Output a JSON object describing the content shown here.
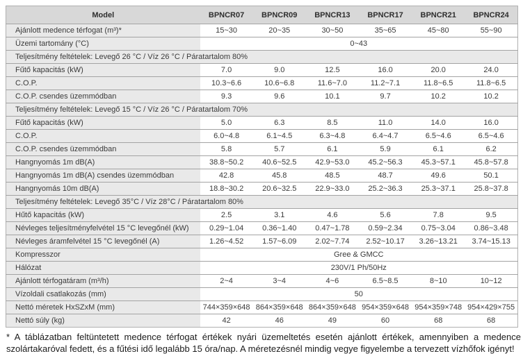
{
  "colors": {
    "header_bg": "#d8d8d8",
    "label_bg": "#e9e9e9",
    "row_border": "#a3a3a3",
    "outer_border": "#b0b0b0",
    "text": "#3a3a3a",
    "header_text": "#2e2e2e",
    "footnote_text": "#1b1b1b"
  },
  "table": {
    "header": {
      "label": "Model",
      "models": [
        "BPNCR07",
        "BPNCR09",
        "BPNCR13",
        "BPNCR17",
        "BPNCR21",
        "BPNCR24"
      ]
    },
    "rows": [
      {
        "type": "data",
        "label": "Ajánlott medence térfogat (m³)*",
        "values": [
          "15~30",
          "20~35",
          "30~50",
          "35~65",
          "45~80",
          "55~90"
        ]
      },
      {
        "type": "span",
        "label": "Üzemi tartomány (°C)",
        "value": "0~43"
      },
      {
        "type": "section",
        "label": "Teljesítmény feltételek: Levegő 26 °C / Víz 26 °C / Páratartalom 80%"
      },
      {
        "type": "data",
        "label": "Fűtő kapacitás (kW)",
        "values": [
          "7.0",
          "9.0",
          "12.5",
          "16.0",
          "20.0",
          "24.0"
        ]
      },
      {
        "type": "data",
        "label": "C.O.P.",
        "values": [
          "10.3~6.6",
          "10.6~6.8",
          "11.6~7.0",
          "11.2~7.1",
          "11.8~6.5",
          "11.8~6.5"
        ]
      },
      {
        "type": "data",
        "label": "C.O.P. csendes üzemmódban",
        "values": [
          "9.3",
          "9.6",
          "10.1",
          "9.7",
          "10.2",
          "10.2"
        ]
      },
      {
        "type": "section",
        "label": "Teljesítmény feltételek: Levegő 15 °C / Víz 26 °C / Páratartalom 70%"
      },
      {
        "type": "data",
        "label": "Fűtő kapacitás (kW)",
        "values": [
          "5.0",
          "6.3",
          "8.5",
          "11.0",
          "14.0",
          "16.0"
        ]
      },
      {
        "type": "data",
        "label": "C.O.P.",
        "values": [
          "6.0~4.8",
          "6.1~4.5",
          "6.3~4.8",
          "6.4~4.7",
          "6.5~4.6",
          "6.5~4.6"
        ]
      },
      {
        "type": "data",
        "label": "C.O.P. csendes üzemmódban",
        "values": [
          "5.8",
          "5.7",
          "6.1",
          "5.9",
          "6.1",
          "6.2"
        ]
      },
      {
        "type": "data",
        "label": "Hangnyomás 1m dB(A)",
        "values": [
          "38.8~50.2",
          "40.6~52.5",
          "42.9~53.0",
          "45.2~56.3",
          "45.3~57.1",
          "45.8~57.8"
        ]
      },
      {
        "type": "data",
        "label": "Hangnyomás 1m dB(A) csendes üzemmódban",
        "values": [
          "42.8",
          "45.8",
          "48.5",
          "48.7",
          "49.6",
          "50.1"
        ]
      },
      {
        "type": "data",
        "label": "Hangnyomás 10m dB(A)",
        "values": [
          "18.8~30.2",
          "20.6~32.5",
          "22.9~33.0",
          "25.2~36.3",
          "25.3~37.1",
          "25.8~37.8"
        ]
      },
      {
        "type": "section",
        "label": "Teljesítmény feltételek: Levegő 35°C / Víz 28°C / Páratartalom 80%"
      },
      {
        "type": "data",
        "label": "Hűtő kapacitás (kW)",
        "values": [
          "2.5",
          "3.1",
          "4.6",
          "5.6",
          "7.8",
          "9.5"
        ]
      },
      {
        "type": "data",
        "label": "Névleges teljesítményfelvétel 15 °C levegőnél (kW)",
        "values": [
          "0.29~1.04",
          "0.36~1.40",
          "0.47~1.78",
          "0.59~2.34",
          "0.75~3.04",
          "0.86~3.48"
        ]
      },
      {
        "type": "data",
        "label": "Névleges áramfelvétel 15 °C levegőnél (A)",
        "values": [
          "1.26~4.52",
          "1.57~6.09",
          "2.02~7.74",
          "2.52~10.17",
          "3.26~13.21",
          "3.74~15.13"
        ]
      },
      {
        "type": "span",
        "label": "Kompresszor",
        "value": "Gree & GMCC"
      },
      {
        "type": "span",
        "label": "Hálózat",
        "value": "230V/1 Ph/50Hz"
      },
      {
        "type": "data",
        "label": "Ajánlott térfogatáram (m³/h)",
        "values": [
          "2~4",
          "3~4",
          "4~6",
          "6.5~8.5",
          "8~10",
          "10~12"
        ]
      },
      {
        "type": "span",
        "label": "Vízoldali csatlakozás (mm)",
        "value": "50"
      },
      {
        "type": "data",
        "label": "Nettó méretek HxSZxM (mm)",
        "values": [
          "744×359×648",
          "864×359×648",
          "864×359×648",
          "954×359×648",
          "954×359×748",
          "954×429×755"
        ]
      },
      {
        "type": "data",
        "label": "Nettó súly (kg)",
        "values": [
          "42",
          "46",
          "49",
          "60",
          "68",
          "68"
        ]
      }
    ]
  },
  "footnote": "* A táblázatban feltüntetett medence térfogat értékek nyári üzemeltetés esetén ajánlott értékek, amennyiben a medence szolártakaróval fedett, és a fűtési idő legalább 15 óra/nap. A méretezésnél mindig vegye figyelembe a tervezett vízhőfok igényt!"
}
